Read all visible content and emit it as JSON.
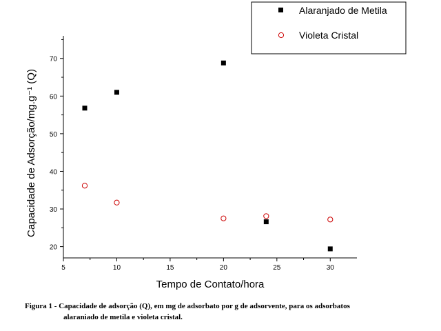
{
  "chart_data": {
    "type": "scatter",
    "xlabel": "Tempo de Contato/hora",
    "ylabel": "Capacidade de Adsorção/mg.g⁻¹ (Q)",
    "xlim": [
      5,
      32.5
    ],
    "ylim": [
      17,
      76
    ],
    "xticks": [
      5,
      10,
      15,
      20,
      25,
      30
    ],
    "yticks": [
      20,
      30,
      40,
      50,
      60,
      70
    ],
    "legend_position": "top-right",
    "grid": false,
    "series": [
      {
        "name": "Alaranjado de Metila",
        "marker": "filled-square",
        "color": "#000000",
        "x": [
          7,
          10,
          20,
          24,
          30
        ],
        "y": [
          56.8,
          61,
          68.8,
          26.6,
          19.4
        ]
      },
      {
        "name": "Violeta Cristal",
        "marker": "open-circle",
        "color": "#cc0000",
        "x": [
          7,
          10,
          20,
          24,
          30
        ],
        "y": [
          36.2,
          31.7,
          27.5,
          28.1,
          27.2
        ]
      }
    ]
  },
  "caption": {
    "line1": "Figura 1 - Capacidade de adsorção (Q), em mg de adsorbato por g de adsorvente, para os adsorbatos",
    "line2": "alaraniado de metila e  violeta cristal."
  }
}
